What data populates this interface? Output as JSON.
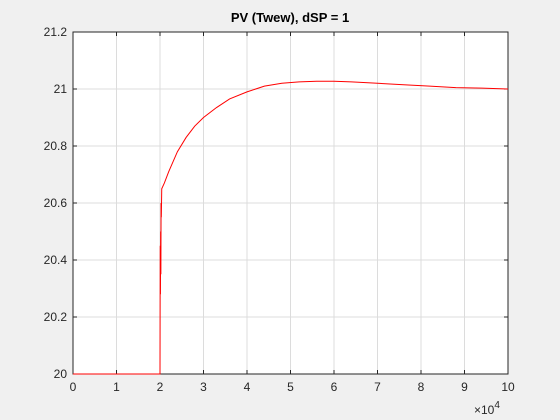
{
  "chart_data": {
    "type": "line",
    "title": "PV (Twew), dSP = 1",
    "xlabel": "",
    "ylabel": "",
    "xlim": [
      0,
      100000
    ],
    "ylim": [
      20,
      21.2
    ],
    "x_exponent_label": "×10",
    "x_exponent_power": "4",
    "xticks": [
      0,
      10000,
      20000,
      30000,
      40000,
      50000,
      60000,
      70000,
      80000,
      90000,
      100000
    ],
    "xtick_labels": [
      "0",
      "1",
      "2",
      "3",
      "4",
      "5",
      "6",
      "7",
      "8",
      "9",
      "10"
    ],
    "yticks": [
      20,
      20.2,
      20.4,
      20.6,
      20.8,
      21,
      21.2
    ],
    "ytick_labels": [
      "20",
      "20.2",
      "20.4",
      "20.6",
      "20.8",
      "21",
      "21.2"
    ],
    "grid": true,
    "series": [
      {
        "color": "#ff0000",
        "x": [
          0,
          20000,
          20050,
          20100,
          20150,
          20200,
          20250,
          20300,
          20400,
          21000,
          22000,
          24000,
          26000,
          28000,
          30000,
          33000,
          36000,
          40000,
          44000,
          48000,
          52000,
          56000,
          60000,
          64000,
          70000,
          76000,
          82000,
          88000,
          94000,
          100000
        ],
        "y": [
          20,
          20,
          20.45,
          20.28,
          20.5,
          20.35,
          20.6,
          20.55,
          20.65,
          20.67,
          20.71,
          20.78,
          20.83,
          20.87,
          20.9,
          20.935,
          20.965,
          20.99,
          21.01,
          21.02,
          21.025,
          21.027,
          21.027,
          21.025,
          21.02,
          21.015,
          21.01,
          21.005,
          21.003,
          21.0
        ]
      }
    ]
  }
}
